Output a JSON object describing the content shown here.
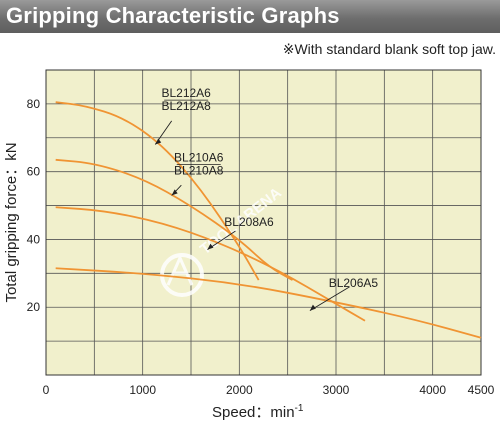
{
  "header": {
    "title": "Gripping Characteristic Graphs"
  },
  "note": "※With standard blank soft top jaw.",
  "watermark": "TOOL ARENA",
  "chart_data": {
    "type": "line",
    "xlabel": "Speed：min",
    "xlabel_sup": "-1",
    "ylabel": "Total gripping force：kN",
    "xlim": [
      0,
      4500
    ],
    "ylim": [
      0,
      90
    ],
    "x_ticks": [
      0,
      1000,
      2000,
      3000,
      4000,
      4500
    ],
    "y_ticks": [
      20,
      40,
      60,
      80
    ],
    "grid": true,
    "line_color": "#f09433",
    "series": [
      {
        "name": "BL212A6\nBL212A8",
        "label_lines": [
          "BL212A6",
          "BL212A8"
        ],
        "x": [
          100,
          400,
          800,
          1200,
          1600,
          2000,
          2200
        ],
        "y": [
          80.5,
          79.5,
          76,
          68,
          55,
          38,
          28
        ]
      },
      {
        "name": "BL210A6\nBL210A8",
        "label_lines": [
          "BL210A6",
          "BL210A8"
        ],
        "x": [
          100,
          500,
          1000,
          1500,
          2000,
          2300,
          2550
        ],
        "y": [
          63.5,
          62.5,
          58,
          50,
          40,
          32,
          28
        ]
      },
      {
        "name": "BL208A6",
        "label_lines": [
          "BL208A6"
        ],
        "x": [
          100,
          600,
          1200,
          1800,
          2400,
          3000,
          3300
        ],
        "y": [
          49.5,
          48.5,
          45,
          39,
          31,
          21,
          16
        ]
      },
      {
        "name": "BL206A5",
        "label_lines": [
          "BL206A5"
        ],
        "x": [
          100,
          1000,
          2000,
          3000,
          3800,
          4500
        ],
        "y": [
          31.5,
          30,
          27,
          21.5,
          16.5,
          11
        ]
      }
    ],
    "labels": [
      {
        "series": 0,
        "x": 1450,
        "y": 82,
        "leader_from": [
          1300,
          75
        ],
        "leader_to": [
          1130,
          68
        ]
      },
      {
        "series": 1,
        "x": 1580,
        "y": 63,
        "leader_from": [
          1400,
          56
        ],
        "leader_to": [
          1300,
          53
        ]
      },
      {
        "series": 2,
        "x": 2100,
        "y": 44,
        "leader_from": [
          1960,
          42.5
        ],
        "leader_to": [
          1670,
          37
        ]
      },
      {
        "series": 3,
        "x": 3180,
        "y": 26,
        "leader_from": [
          3140,
          26
        ],
        "leader_to": [
          2730,
          19
        ]
      }
    ]
  }
}
